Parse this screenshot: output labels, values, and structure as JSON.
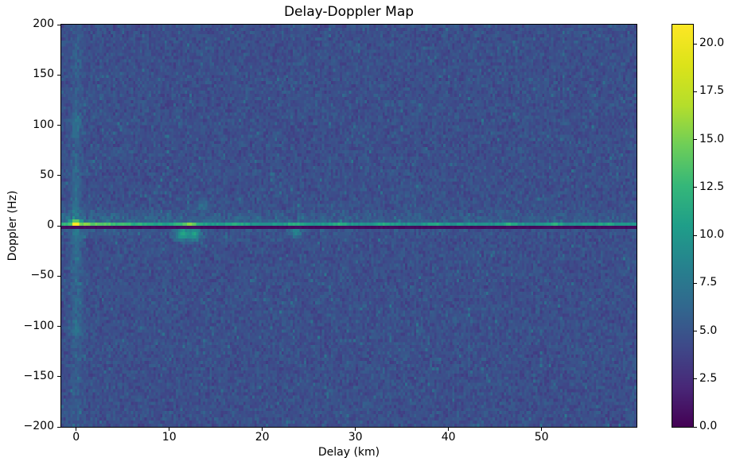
{
  "chart_data": {
    "type": "heatmap",
    "title": "Delay-Doppler Map",
    "xlabel": "Delay (km)",
    "ylabel": "Doppler (Hz)",
    "xlim": [
      -1.6,
      60.2
    ],
    "ylim": [
      -200,
      200
    ],
    "grid": false,
    "legend": "none",
    "colormap": {
      "name": "viridis",
      "stops": [
        [
          0.0,
          "#440154"
        ],
        [
          0.1,
          "#482878"
        ],
        [
          0.2,
          "#3e4989"
        ],
        [
          0.3,
          "#31688e"
        ],
        [
          0.4,
          "#26828e"
        ],
        [
          0.5,
          "#1f9e89"
        ],
        [
          0.6,
          "#35b779"
        ],
        [
          0.7,
          "#6ece58"
        ],
        [
          0.8,
          "#b5de2b"
        ],
        [
          0.9,
          "#dce319"
        ],
        [
          1.0,
          "#fde725"
        ]
      ]
    },
    "x_axis_ticks": [
      {
        "value": 0,
        "label": "0"
      },
      {
        "value": 10,
        "label": "10"
      },
      {
        "value": 20,
        "label": "20"
      },
      {
        "value": 30,
        "label": "30"
      },
      {
        "value": 40,
        "label": "40"
      },
      {
        "value": 50,
        "label": "50"
      }
    ],
    "y_axis_ticks": [
      {
        "value": 200,
        "label": "200"
      },
      {
        "value": 150,
        "label": "150"
      },
      {
        "value": 100,
        "label": "100"
      },
      {
        "value": 50,
        "label": "50"
      },
      {
        "value": 0,
        "label": "0"
      },
      {
        "value": -50,
        "label": "−50"
      },
      {
        "value": -100,
        "label": "−100"
      },
      {
        "value": -150,
        "label": "−150"
      },
      {
        "value": -200,
        "label": "−200"
      }
    ],
    "colorbar": {
      "vmin": 0,
      "vmax": 21,
      "ticks": [
        {
          "value": 20.0,
          "label": "20.0"
        },
        {
          "value": 17.5,
          "label": "17.5"
        },
        {
          "value": 15.0,
          "label": "15.0"
        },
        {
          "value": 12.5,
          "label": "12.5"
        },
        {
          "value": 10.0,
          "label": "10.0"
        },
        {
          "value": 7.5,
          "label": "7.5"
        },
        {
          "value": 5.0,
          "label": "5.0"
        },
        {
          "value": 2.5,
          "label": "2.5"
        },
        {
          "value": 0.0,
          "label": "0.0"
        }
      ]
    },
    "resolution": {
      "delay_bins": 256,
      "doppler_bins": 128
    },
    "features": {
      "noise": {
        "seed": 7,
        "base": 3.2,
        "spread": 1.4,
        "spike_prob": 0.05,
        "spike_amp": 2.0
      },
      "zero_doppler_dark_line": {
        "doppler_hz": 0,
        "value": 0.4
      },
      "specular_ridge": {
        "doppler_hz": 2,
        "base_value": 8.5,
        "near_zero_boost": 6.5,
        "decay_km": 6,
        "jitter": 2.0
      },
      "origin_peak": {
        "delay_km": 0,
        "doppler_hz": 2,
        "value": 21
      },
      "vertical_streak": {
        "delay_km": 0,
        "amplitude": 2.4,
        "doppler_scale_hz": 75,
        "sidelobe_doppler_hz": 100,
        "sidelobe_amp": 1.2
      },
      "above_ridge_glow": {
        "amplitude": 1.7,
        "doppler_center_hz": 5,
        "doppler_sigma_hz": 6,
        "delay_decay_km": 22
      },
      "ridge_hotspots": [
        {
          "delay_km": 11.7,
          "boost": 3.2
        },
        {
          "delay_km": 12.6,
          "boost": 2.6
        },
        {
          "delay_km": 17.2,
          "boost": 2.2
        },
        {
          "delay_km": 23.5,
          "boost": 2.4
        },
        {
          "delay_km": 28.2,
          "boost": 2.0
        },
        {
          "delay_km": 33.0,
          "boost": 1.8
        },
        {
          "delay_km": 38.5,
          "boost": 1.8
        },
        {
          "delay_km": 46.5,
          "boost": 2.2
        },
        {
          "delay_km": 51.5,
          "boost": 2.0
        },
        {
          "delay_km": 57.0,
          "boost": 1.8
        }
      ],
      "echo_blobs": [
        {
          "delay_km": 11.4,
          "doppler_hz": -8,
          "value": 5.5,
          "sigma_km": 0.5,
          "sigma_hz": 5
        },
        {
          "delay_km": 12.7,
          "doppler_hz": -8,
          "value": 5.0,
          "sigma_km": 0.5,
          "sigma_hz": 5
        },
        {
          "delay_km": 23.6,
          "doppler_hz": -6,
          "value": 3.5,
          "sigma_km": 0.5,
          "sigma_hz": 4
        },
        {
          "delay_km": 13.6,
          "doppler_hz": 20,
          "value": 3.0,
          "sigma_km": 0.4,
          "sigma_hz": 4
        }
      ]
    }
  }
}
